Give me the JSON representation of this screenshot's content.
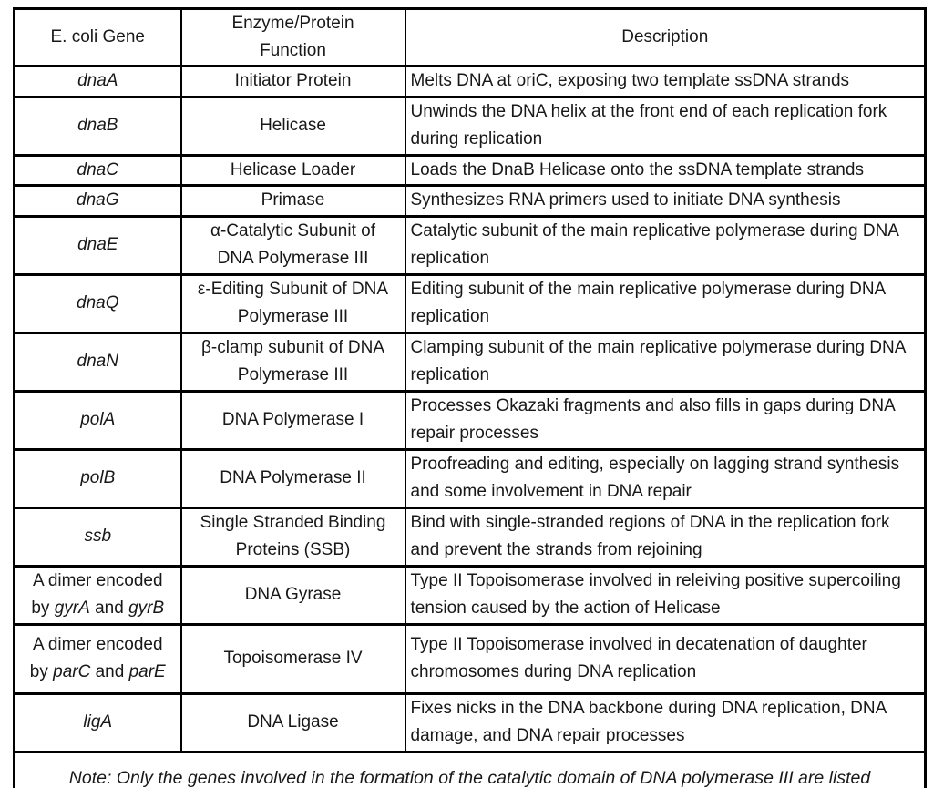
{
  "page": {
    "background": "#ffffff",
    "border_color": "#000000",
    "text_color": "#181818"
  },
  "table": {
    "headers": [
      "E. coli Gene",
      "Enzyme/Protein\nFunction",
      "Description"
    ],
    "rows": [
      {
        "gene": [
          {
            "text": "dnaA",
            "italic": true
          }
        ],
        "function": "Initiator Protein",
        "description": "Melts DNA at oriC, exposing two template ssDNA strands"
      },
      {
        "gene": [
          {
            "text": "dnaB",
            "italic": true
          }
        ],
        "function": "Helicase",
        "description": "Unwinds the DNA helix at the front end of each replication fork during replication"
      },
      {
        "gene": [
          {
            "text": "dnaC",
            "italic": true
          }
        ],
        "function": "Helicase Loader",
        "description": "Loads the DnaB Helicase onto the ssDNA template strands"
      },
      {
        "gene": [
          {
            "text": "dnaG",
            "italic": true
          }
        ],
        "function": "Primase",
        "description": "Synthesizes RNA primers used to initiate DNA synthesis"
      },
      {
        "gene": [
          {
            "text": "dnaE",
            "italic": true
          }
        ],
        "function": "α-Catalytic Subunit of\nDNA Polymerase III",
        "description": "Catalytic subunit of the main replicative polymerase during DNA replication"
      },
      {
        "gene": [
          {
            "text": "dnaQ",
            "italic": true
          }
        ],
        "function": "ε-Editing Subunit of DNA\nPolymerase III",
        "description": "Editing subunit of the main replicative polymerase during DNA replication"
      },
      {
        "gene": [
          {
            "text": "dnaN",
            "italic": true
          }
        ],
        "function": "β-clamp subunit of DNA\nPolymerase III",
        "description": "Clamping subunit of the main replicative polymerase during DNA replication"
      },
      {
        "gene": [
          {
            "text": "polA",
            "italic": true
          }
        ],
        "function": "DNA Polymerase I",
        "description": "Processes Okazaki fragments and also fills in gaps during DNA repair processes"
      },
      {
        "gene": [
          {
            "text": "polB",
            "italic": true
          }
        ],
        "function": "DNA Polymerase II",
        "description": "Proofreading and editing, especially on lagging strand synthesis and some involvement in DNA repair"
      },
      {
        "gene": [
          {
            "text": "ssb",
            "italic": true
          }
        ],
        "function": "Single Stranded Binding\nProteins (SSB)",
        "description": "Bind with single-stranded regions of DNA in the replication fork and prevent the strands from rejoining"
      },
      {
        "gene": [
          {
            "text": "A dimer encoded",
            "italic": false
          },
          {
            "br": true
          },
          {
            "text": "by ",
            "italic": false
          },
          {
            "text": "gyrA",
            "italic": true
          },
          {
            "text": " and ",
            "italic": false
          },
          {
            "text": "gyrB",
            "italic": true
          }
        ],
        "function": "DNA Gyrase",
        "description": "Type II Topoisomerase involved in releiving positive supercoiling tension caused by the action of Helicase"
      },
      {
        "gene": [
          {
            "text": "A dimer encoded",
            "italic": false
          },
          {
            "br": true
          },
          {
            "text": "by ",
            "italic": false
          },
          {
            "text": "parC",
            "italic": true
          },
          {
            "text": " and ",
            "italic": false
          },
          {
            "text": "parE",
            "italic": true
          }
        ],
        "function": "Topoisomerase IV",
        "description": "Type II Topoisomerase involved in decatenation of daughter chromosomes during DNA replication"
      },
      {
        "gene": [
          {
            "text": "ligA",
            "italic": true
          }
        ],
        "function": "DNA Ligase",
        "description": "Fixes nicks in the DNA backbone during DNA replication, DNA damage, and DNA repair processes"
      }
    ],
    "note": "Note: Only the genes involved in the formation of the catalytic domain of DNA polymerase III are listed"
  }
}
